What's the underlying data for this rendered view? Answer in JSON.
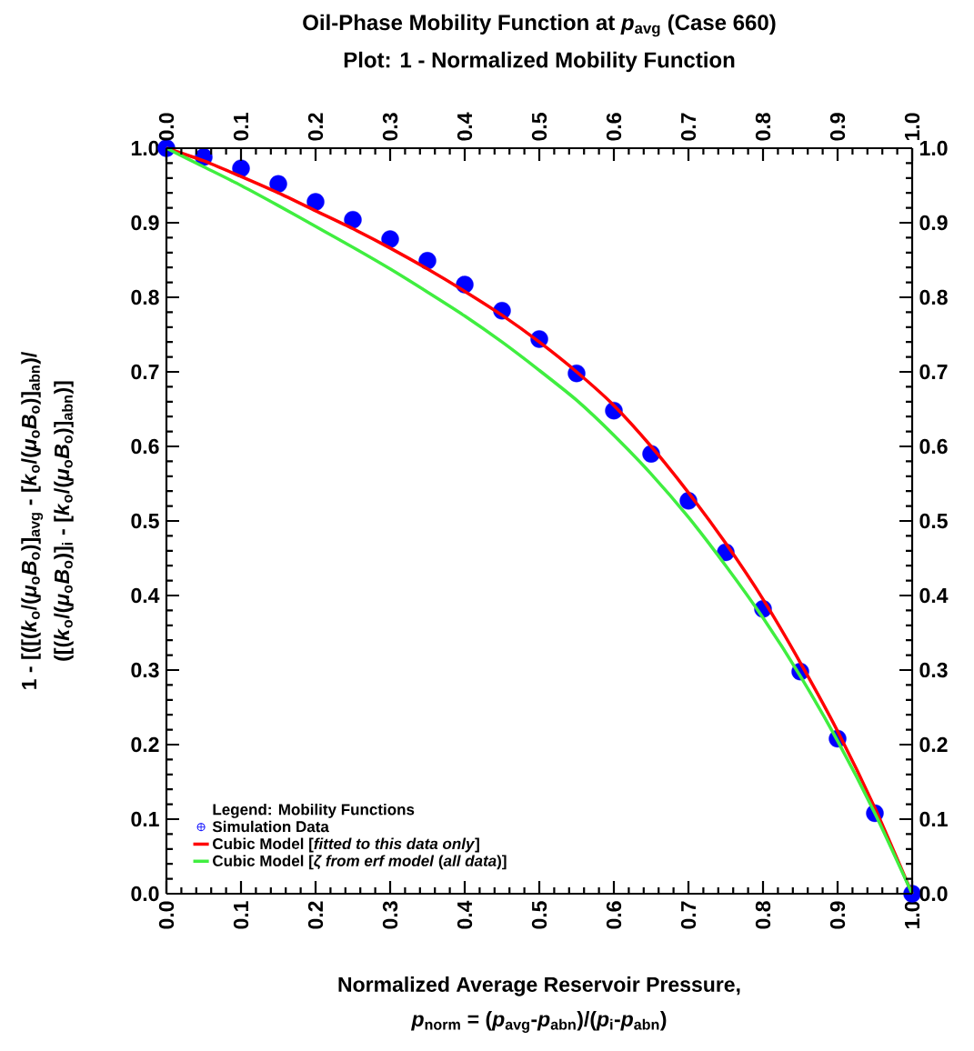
{
  "chart_data": {
    "type": "line",
    "title": "Oil-Phase Mobility Function at *p*$_{avg}$ (Case 660)",
    "subtitle": "Plot: 1 - Normalized Mobility Function",
    "xlabel": [
      "Normalized Average Reservoir Pressure,",
      "*p*$_{norm}$ = (*p*$_{avg}$-*p*$_{abn}$)/(*p*$_{i}$-*p*$_{abn}$)"
    ],
    "ylabel": [
      "1 - [([(*k*$_{o}$/(*μ*$_{o}$*B*$_{o}$)]$_{avg}$ - [*k*$_{o}$/(*μ*$_{o}$*B*$_{o}$)]$_{abn}$)/",
      "([(*k*$_{o}$/(*μ*$_{o}$*B*$_{o}$)]$_{i}$ - [*k*$_{o}$/(*μ*$_{o}$*B*$_{o}$)]$_{abn}$)]"
    ],
    "legend_title": "Legend: Mobility Functions",
    "legend": "bottom left",
    "xlim": [
      0,
      1
    ],
    "ylim": [
      0,
      1
    ],
    "x2lim": [
      0,
      1
    ],
    "y2lim": [
      0,
      1
    ],
    "xticks": [
      {
        "value": 0,
        "label": "0.0"
      },
      {
        "value": 0.1,
        "label": "0.1"
      },
      {
        "value": 0.2,
        "label": "0.2"
      },
      {
        "value": 0.3,
        "label": "0.3"
      },
      {
        "value": 0.4,
        "label": "0.4"
      },
      {
        "value": 0.5,
        "label": "0.5"
      },
      {
        "value": 0.6,
        "label": "0.6"
      },
      {
        "value": 0.7,
        "label": "0.7"
      },
      {
        "value": 0.8,
        "label": "0.8"
      },
      {
        "value": 0.9,
        "label": "0.9"
      },
      {
        "value": 1,
        "label": "1.0"
      }
    ],
    "x2ticks": [
      {
        "value": 0,
        "label": "0.0"
      },
      {
        "value": 0.1,
        "label": "0.1"
      },
      {
        "value": 0.2,
        "label": "0.2"
      },
      {
        "value": 0.3,
        "label": "0.3"
      },
      {
        "value": 0.4,
        "label": "0.4"
      },
      {
        "value": 0.5,
        "label": "0.5"
      },
      {
        "value": 0.6,
        "label": "0.6"
      },
      {
        "value": 0.7,
        "label": "0.7"
      },
      {
        "value": 0.8,
        "label": "0.8"
      },
      {
        "value": 0.9,
        "label": "0.9"
      },
      {
        "value": 1,
        "label": "1.0"
      }
    ],
    "yticks": [
      {
        "value": 0,
        "label": "0.0"
      },
      {
        "value": 0.1,
        "label": "0.1"
      },
      {
        "value": 0.2,
        "label": "0.2"
      },
      {
        "value": 0.3,
        "label": "0.3"
      },
      {
        "value": 0.4,
        "label": "0.4"
      },
      {
        "value": 0.5,
        "label": "0.5"
      },
      {
        "value": 0.6,
        "label": "0.6"
      },
      {
        "value": 0.7,
        "label": "0.7"
      },
      {
        "value": 0.8,
        "label": "0.8"
      },
      {
        "value": 0.9,
        "label": "0.9"
      },
      {
        "value": 1,
        "label": "1.0"
      }
    ],
    "y2ticks": [
      {
        "value": 0,
        "label": "0.0"
      },
      {
        "value": 0.1,
        "label": "0.1"
      },
      {
        "value": 0.2,
        "label": "0.2"
      },
      {
        "value": 0.3,
        "label": "0.3"
      },
      {
        "value": 0.4,
        "label": "0.4"
      },
      {
        "value": 0.5,
        "label": "0.5"
      },
      {
        "value": 0.6,
        "label": "0.6"
      },
      {
        "value": 0.7,
        "label": "0.7"
      },
      {
        "value": 0.8,
        "label": "0.8"
      },
      {
        "value": 0.9,
        "label": "0.9"
      },
      {
        "value": 1,
        "label": "1.0"
      }
    ],
    "series": [
      {
        "name": "Simulation Data",
        "type": "scatter",
        "marker": "circle",
        "color": "#0000ff",
        "x": [
          0,
          0.05,
          0.1,
          0.15,
          0.2,
          0.25,
          0.3,
          0.35,
          0.4,
          0.45,
          0.5,
          0.55,
          0.6,
          0.65,
          0.7,
          0.75,
          0.8,
          0.85,
          0.9,
          0.95,
          1
        ],
        "values": [
          1,
          0.988,
          0.973,
          0.952,
          0.928,
          0.904,
          0.878,
          0.849,
          0.817,
          0.782,
          0.744,
          0.698,
          0.648,
          0.59,
          0.527,
          0.458,
          0.382,
          0.298,
          0.208,
          0.108,
          0
        ]
      },
      {
        "name": "Cubic Model [*fitted to this data only*]",
        "color": "#ff0000",
        "x": [
          0,
          0.05,
          0.1,
          0.15,
          0.2,
          0.25,
          0.3,
          0.35,
          0.4,
          0.45,
          0.5,
          0.55,
          0.6,
          0.65,
          0.7,
          0.75,
          0.8,
          0.85,
          0.9,
          0.95,
          1
        ],
        "values": [
          1,
          0.983,
          0.962,
          0.94,
          0.916,
          0.892,
          0.866,
          0.838,
          0.808,
          0.776,
          0.74,
          0.7,
          0.655,
          0.6,
          0.538,
          0.47,
          0.395,
          0.31,
          0.218,
          0.115,
          0
        ]
      },
      {
        "name": "Cubic Model [*ζ from erf model* (*all data*)]",
        "color": "#40ee40",
        "x": [
          0,
          0.05,
          0.1,
          0.15,
          0.2,
          0.25,
          0.3,
          0.35,
          0.4,
          0.45,
          0.5,
          0.55,
          0.6,
          0.65,
          0.7,
          0.75,
          0.8,
          0.85,
          0.9,
          0.95,
          1
        ],
        "values": [
          1,
          0.975,
          0.95,
          0.923,
          0.895,
          0.867,
          0.838,
          0.807,
          0.775,
          0.74,
          0.702,
          0.662,
          0.615,
          0.563,
          0.505,
          0.44,
          0.37,
          0.292,
          0.205,
          0.108,
          0
        ]
      }
    ]
  }
}
